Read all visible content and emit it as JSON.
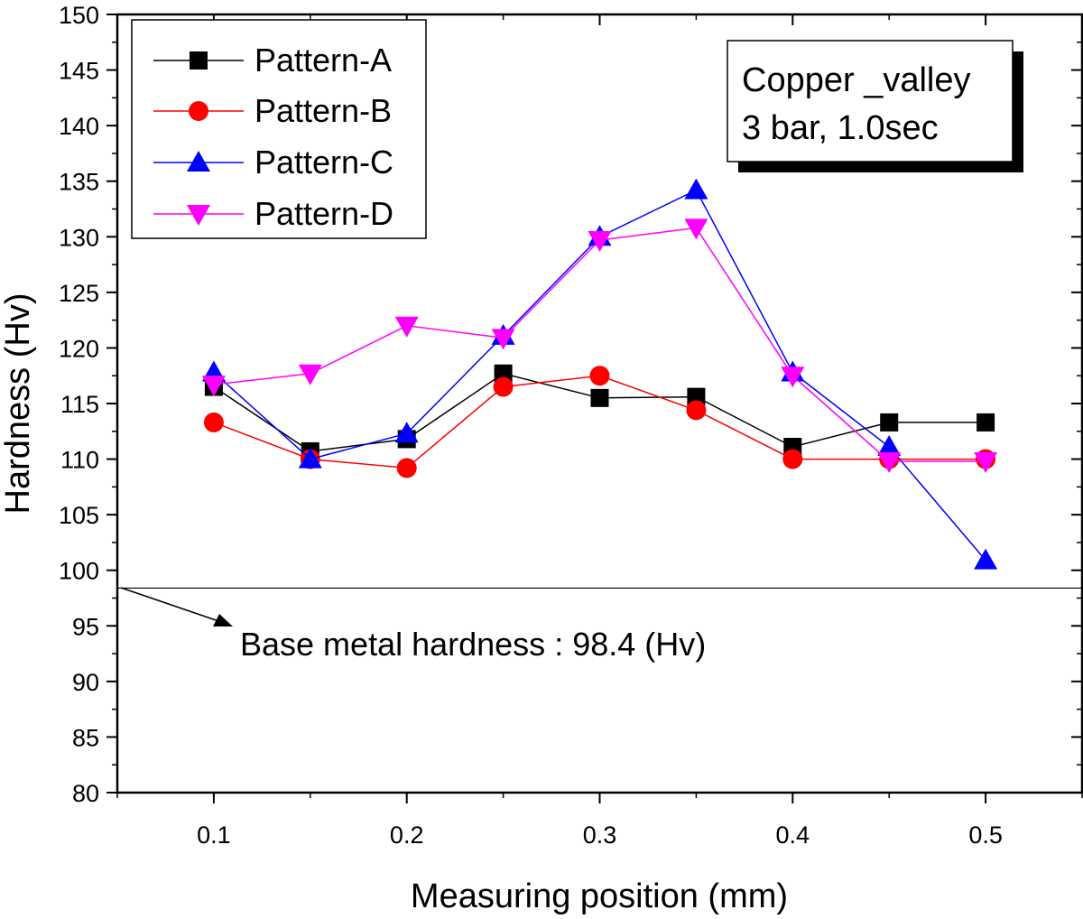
{
  "chart_data": {
    "type": "line",
    "title": "",
    "xlabel": "Measuring position (mm)",
    "ylabel": "Hardness (Hv)",
    "xlim": [
      0.05,
      0.55
    ],
    "ylim": [
      80,
      150
    ],
    "x": [
      0.1,
      0.15,
      0.2,
      0.25,
      0.3,
      0.35,
      0.4,
      0.45,
      0.5
    ],
    "x_ticks": [
      "0.1",
      "0.2",
      "0.3",
      "0.4",
      "0.5"
    ],
    "y_ticks": [
      "80",
      "85",
      "90",
      "95",
      "100",
      "105",
      "110",
      "115",
      "120",
      "125",
      "130",
      "135",
      "140",
      "145",
      "150"
    ],
    "series": [
      {
        "name": "Pattern-A",
        "color": "#000000",
        "marker": "square",
        "values": [
          116.5,
          110.7,
          111.8,
          117.7,
          115.5,
          115.6,
          111.1,
          113.3,
          113.3
        ]
      },
      {
        "name": "Pattern-B",
        "color": "#ff0000",
        "marker": "circle",
        "values": [
          113.3,
          110.0,
          109.2,
          116.5,
          117.5,
          114.4,
          110.0,
          110.0,
          110.0
        ]
      },
      {
        "name": "Pattern-C",
        "color": "#0000ff",
        "marker": "triangle-up",
        "values": [
          117.8,
          110.0,
          112.3,
          121.1,
          130.0,
          134.2,
          117.8,
          111.1,
          100.9
        ]
      },
      {
        "name": "Pattern-D",
        "color": "#ff00ff",
        "marker": "triangle-down",
        "values": [
          116.7,
          117.7,
          122.0,
          120.9,
          129.7,
          130.8,
          117.5,
          109.8,
          109.8
        ]
      }
    ],
    "info_box": [
      "Copper _valley",
      "3 bar, 1.0sec"
    ],
    "reference_line": {
      "value": 98.4,
      "label": "Base metal hardness : 98.4 (Hv)"
    },
    "legend_position": "top-left"
  }
}
